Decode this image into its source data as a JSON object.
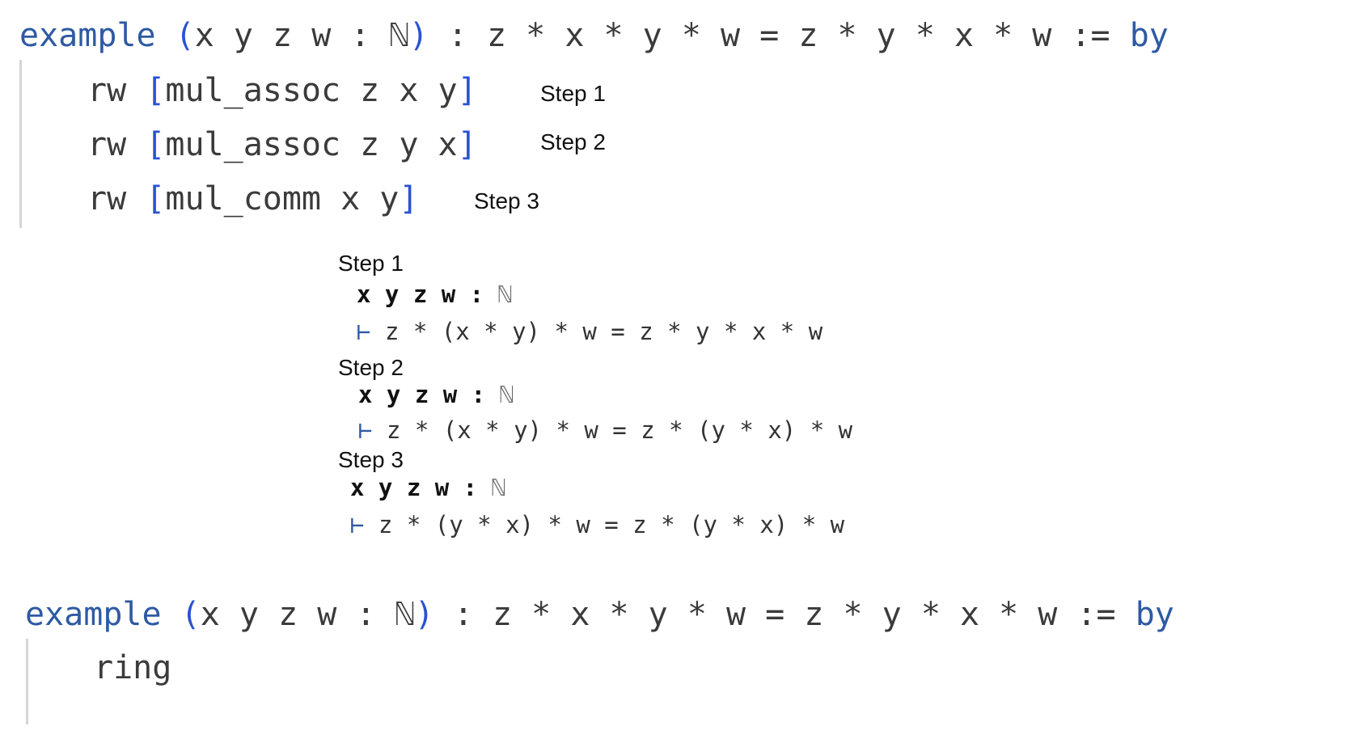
{
  "block1": {
    "keyword": "example",
    "binder_open": "(",
    "binder_vars": "x y z w : ℕ",
    "binder_close": ")",
    "statement": " : z * x * y * w = z * y * x * w := ",
    "by": "by",
    "tactics": [
      {
        "name": "rw",
        "open": "[",
        "arg": "mul_assoc z x y",
        "close": "]",
        "note": "Step 1"
      },
      {
        "name": "rw",
        "open": "[",
        "arg": "mul_assoc z y x",
        "close": "]",
        "note": "Step 2"
      },
      {
        "name": "rw",
        "open": "[",
        "arg": "mul_comm x y",
        "close": "]",
        "note": "Step 3"
      }
    ]
  },
  "goals": [
    {
      "label": "Step 1",
      "vars": "x y z w :",
      "type": "ℕ",
      "turnstile": "⊢",
      "goal": "z * (x * y) * w = z * y * x * w"
    },
    {
      "label": "Step 2",
      "vars": "x y z w :",
      "type": "ℕ",
      "turnstile": "⊢",
      "goal": "z * (x * y) * w = z * (y * x) * w"
    },
    {
      "label": "Step 3",
      "vars": "x y z w :",
      "type": "ℕ",
      "turnstile": "⊢",
      "goal": "z * (y * x) * w = z * (y * x) * w"
    }
  ],
  "block2": {
    "keyword": "example",
    "binder_open": "(",
    "binder_vars": "x y z w : ℕ",
    "binder_close": ")",
    "statement": " : z * x * y * w = z * y * x * w := ",
    "by": "by",
    "tactic": "ring"
  },
  "colors": {
    "keyword": "#2e5aa3",
    "bracket": "#2a52d4",
    "text": "#3b3b3b"
  }
}
